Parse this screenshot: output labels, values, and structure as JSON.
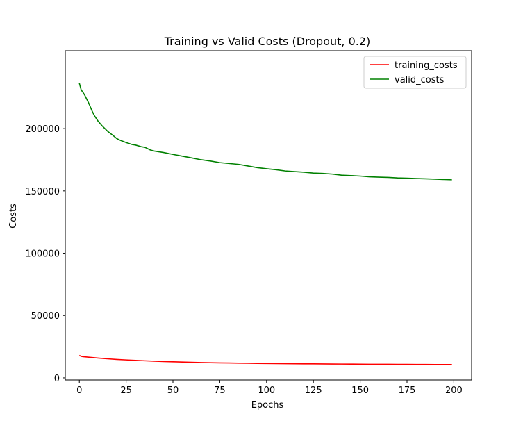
{
  "chart_data": {
    "type": "line",
    "title": "Training vs Valid Costs (Dropout, 0.2)",
    "xlabel": "Epochs",
    "ylabel": "Costs",
    "xlim": [
      -7.5,
      209.5
    ],
    "ylim": [
      -1700,
      262500
    ],
    "xticks": [
      0,
      25,
      50,
      75,
      100,
      125,
      150,
      175,
      200
    ],
    "yticks": [
      0,
      50000,
      100000,
      150000,
      200000
    ],
    "grid": false,
    "legend_position": "top-right",
    "series": [
      {
        "name": "training_costs",
        "color": "#ff0000",
        "x": [
          0,
          1,
          2,
          5,
          10,
          15,
          20,
          25,
          30,
          35,
          40,
          45,
          50,
          55,
          60,
          65,
          70,
          75,
          80,
          85,
          90,
          95,
          100,
          105,
          110,
          115,
          120,
          125,
          130,
          135,
          140,
          145,
          150,
          155,
          160,
          165,
          170,
          175,
          180,
          185,
          190,
          195,
          199
        ],
        "y": [
          18000,
          17300,
          17000,
          16600,
          15900,
          15300,
          14800,
          14400,
          14000,
          13700,
          13400,
          13100,
          12900,
          12700,
          12500,
          12300,
          12150,
          12000,
          11900,
          11800,
          11700,
          11600,
          11500,
          11400,
          11350,
          11300,
          11250,
          11200,
          11150,
          11100,
          11050,
          11000,
          10950,
          10900,
          10900,
          10850,
          10800,
          10800,
          10750,
          10750,
          10700,
          10700,
          10650
        ]
      },
      {
        "name": "valid_costs",
        "color": "#008000",
        "x": [
          0,
          1,
          2,
          3,
          4,
          5,
          6,
          7,
          8,
          10,
          12,
          15,
          18,
          20,
          22,
          25,
          28,
          30,
          33,
          35,
          38,
          40,
          45,
          50,
          55,
          60,
          65,
          70,
          75,
          80,
          85,
          90,
          95,
          100,
          105,
          110,
          115,
          120,
          125,
          130,
          135,
          140,
          145,
          150,
          155,
          160,
          165,
          170,
          175,
          180,
          185,
          190,
          195,
          199
        ],
        "y": [
          236500,
          231000,
          229000,
          226500,
          223500,
          220500,
          217000,
          213500,
          210500,
          206000,
          202500,
          198000,
          194500,
          192000,
          190500,
          188800,
          187300,
          186800,
          185500,
          185000,
          182800,
          182000,
          180800,
          179300,
          177900,
          176500,
          175000,
          174000,
          172700,
          172000,
          171300,
          170000,
          168700,
          167800,
          167000,
          166000,
          165500,
          165000,
          164300,
          164000,
          163500,
          162600,
          162300,
          161900,
          161300,
          161000,
          160800,
          160400,
          160200,
          159900,
          159700,
          159400,
          159100,
          158900
        ]
      }
    ]
  }
}
